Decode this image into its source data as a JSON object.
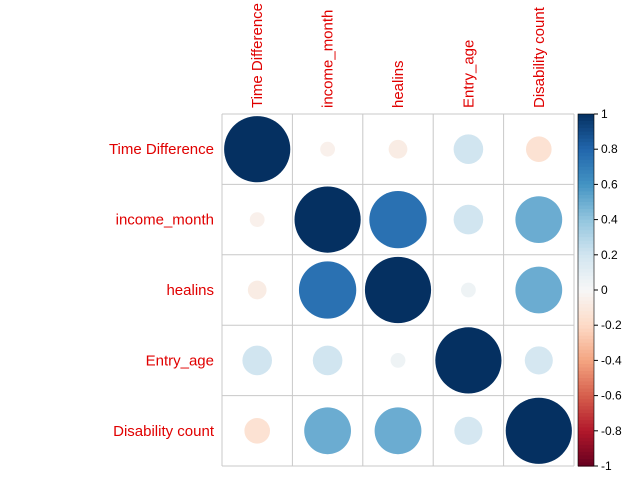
{
  "chart_data": {
    "type": "heatmap",
    "variables": [
      "Time Difference",
      "income_month",
      "healins",
      "Entry_age",
      "Disability count"
    ],
    "matrix": [
      [
        1.0,
        -0.05,
        -0.08,
        0.2,
        -0.15
      ],
      [
        -0.05,
        1.0,
        0.75,
        0.2,
        0.5
      ],
      [
        -0.08,
        0.75,
        1.0,
        0.05,
        0.5
      ],
      [
        0.2,
        0.2,
        0.05,
        1.0,
        0.18
      ],
      [
        -0.15,
        0.5,
        0.5,
        0.18,
        1.0
      ]
    ],
    "method": "circle",
    "colorbar": {
      "ticks": [
        "1",
        "0.8",
        "0.6",
        "0.4",
        "0.2",
        "0",
        "-0.2",
        "-0.4",
        "-0.6",
        "-0.8",
        "-1"
      ],
      "range": [
        -1,
        1
      ]
    },
    "colors": {
      "negative_end": "#67001f",
      "mid": "#f7f7f7",
      "positive_end": "#053061",
      "label": "#e00000",
      "grid": "#c8c8c8"
    }
  }
}
